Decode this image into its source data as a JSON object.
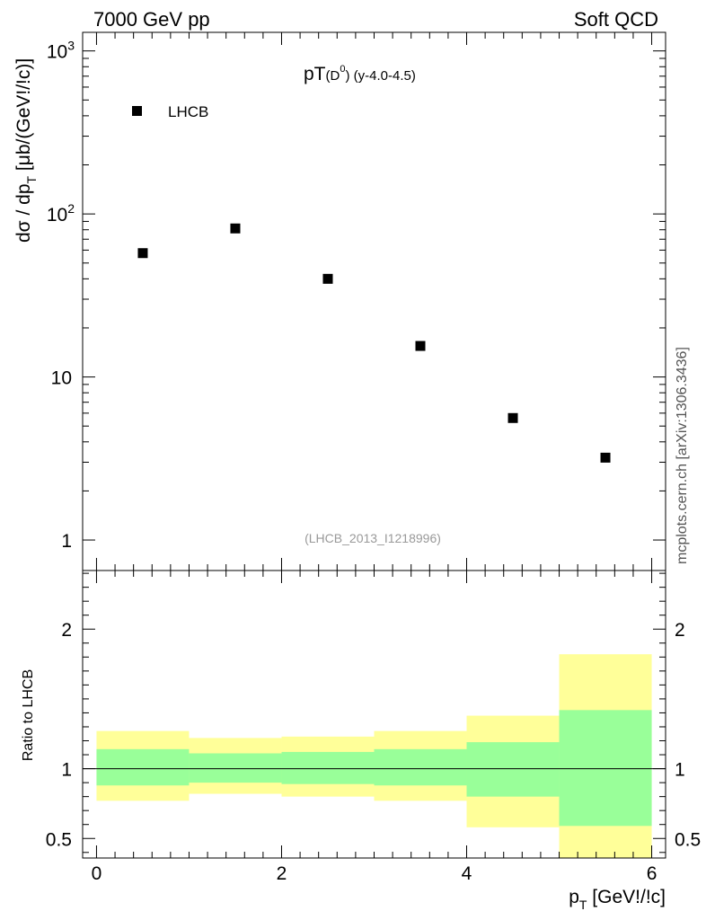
{
  "header": {
    "left": "7000 GeV pp",
    "right": "Soft QCD"
  },
  "side_note": "mcplots.cern.ch [arXiv:1306.3436]",
  "chart_data": [
    {
      "type": "scatter",
      "title_main": "pT",
      "title_sub_open": "(D",
      "title_sup": "0",
      "title_sub_close": ")",
      "title_suffix": " (y-4.0-4.5)",
      "ylabel_main": "dσ / dp",
      "ylabel_sub": "T",
      "ylabel_unit": " [μb/(GeV!/!c)]",
      "yscale": "log",
      "ylim": [
        0.65,
        1300
      ],
      "xlim": [
        -0.15,
        6.15
      ],
      "ytick_labels": [
        {
          "value": 1,
          "label": "1"
        },
        {
          "value": 10,
          "label": "10"
        },
        {
          "value": 100,
          "label": "10",
          "exp": "2"
        },
        {
          "value": 1000,
          "label": "10",
          "exp": "3"
        }
      ],
      "legend": {
        "placement": "top-left",
        "entries": [
          {
            "name": "LHCB",
            "marker": "square",
            "color": "#000000"
          }
        ]
      },
      "series": [
        {
          "name": "LHCB",
          "x": [
            0.5,
            1.5,
            2.5,
            3.5,
            4.5,
            5.5
          ],
          "values": [
            57.5,
            81.5,
            40.0,
            15.5,
            5.6,
            3.2
          ]
        }
      ],
      "annotation": "(LHCB_2013_I1218996)",
      "annotation_color": "#999999"
    },
    {
      "type": "area",
      "ylabel": "Ratio to LHCB",
      "xlabel_main": "p",
      "xlabel_sub": "T",
      "xlabel_unit": " [GeV!/!c]",
      "xlim": [
        -0.15,
        6.15
      ],
      "ylim": [
        0.36,
        2.42
      ],
      "ytick_labels": [
        {
          "value": 0.5,
          "label": "0.5"
        },
        {
          "value": 1,
          "label": "1"
        },
        {
          "value": 2,
          "label": "2"
        }
      ],
      "xtick_labels": [
        {
          "value": 0,
          "label": "0"
        },
        {
          "value": 2,
          "label": "2"
        },
        {
          "value": 4,
          "label": "4"
        },
        {
          "value": 6,
          "label": "6"
        }
      ],
      "reference_line": 1.0,
      "bins": [
        {
          "x_low": 0,
          "x_high": 1,
          "band_outer": [
            0.77,
            1.27
          ],
          "band_inner": [
            0.88,
            1.14
          ]
        },
        {
          "x_low": 1,
          "x_high": 2,
          "band_outer": [
            0.82,
            1.22
          ],
          "band_inner": [
            0.9,
            1.11
          ]
        },
        {
          "x_low": 2,
          "x_high": 3,
          "band_outer": [
            0.8,
            1.23
          ],
          "band_inner": [
            0.89,
            1.12
          ]
        },
        {
          "x_low": 3,
          "x_high": 4,
          "band_outer": [
            0.77,
            1.27
          ],
          "band_inner": [
            0.88,
            1.14
          ]
        },
        {
          "x_low": 4,
          "x_high": 5,
          "band_outer": [
            0.58,
            1.38
          ],
          "band_inner": [
            0.8,
            1.19
          ]
        },
        {
          "x_low": 5,
          "x_high": 6,
          "band_outer": [
            0.36,
            1.82
          ],
          "band_inner": [
            0.59,
            1.42
          ]
        }
      ],
      "colors": {
        "outer_band": "#ffff99",
        "inner_band": "#99ff99",
        "reference_line": "#000000"
      }
    }
  ]
}
